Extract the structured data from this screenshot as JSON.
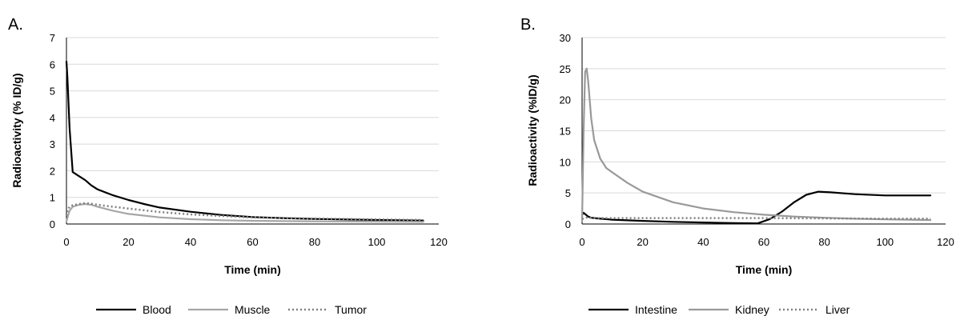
{
  "chart_data": [
    {
      "panel_label": "A.",
      "type": "line",
      "xlabel": "Time (min)",
      "ylabel": "Radioactivity (% ID/g)",
      "xlim": [
        0,
        120
      ],
      "ylim": [
        0,
        7
      ],
      "xticks": [
        0,
        20,
        40,
        60,
        80,
        100,
        120
      ],
      "yticks": [
        0,
        1,
        2,
        3,
        4,
        5,
        6,
        7
      ],
      "grid": "horizontal",
      "legend_position": "bottom",
      "series": [
        {
          "name": "Blood",
          "color": "#000000",
          "dash": "solid",
          "x": [
            0,
            0.3,
            1,
            2,
            4,
            6,
            8,
            10,
            15,
            20,
            25,
            30,
            40,
            50,
            60,
            70,
            80,
            90,
            100,
            115
          ],
          "y": [
            6.1,
            5.5,
            3.6,
            1.95,
            1.8,
            1.65,
            1.45,
            1.3,
            1.08,
            0.9,
            0.75,
            0.62,
            0.46,
            0.34,
            0.26,
            0.22,
            0.19,
            0.17,
            0.15,
            0.13
          ]
        },
        {
          "name": "Muscle",
          "color": "#a6a6a6",
          "dash": "solid",
          "x": [
            0,
            0.5,
            1,
            2,
            4,
            6,
            8,
            10,
            15,
            20,
            30,
            40,
            50,
            60,
            80,
            100,
            115
          ],
          "y": [
            0.1,
            0.3,
            0.5,
            0.65,
            0.72,
            0.75,
            0.72,
            0.65,
            0.5,
            0.38,
            0.25,
            0.18,
            0.14,
            0.12,
            0.1,
            0.09,
            0.08
          ]
        },
        {
          "name": "Tumor",
          "color": "#808080",
          "dash": "dotted",
          "x": [
            0,
            0.5,
            1,
            2,
            4,
            6,
            8,
            10,
            15,
            20,
            30,
            40,
            50,
            60,
            80,
            100,
            115
          ],
          "y": [
            0.3,
            0.55,
            0.65,
            0.7,
            0.75,
            0.78,
            0.76,
            0.72,
            0.65,
            0.58,
            0.45,
            0.36,
            0.3,
            0.25,
            0.2,
            0.17,
            0.15
          ]
        }
      ]
    },
    {
      "panel_label": "B.",
      "type": "line",
      "xlabel": "Time (min)",
      "ylabel": "Radioactivity (%ID/g)",
      "xlim": [
        0,
        120
      ],
      "ylim": [
        0,
        30
      ],
      "xticks": [
        0,
        20,
        40,
        60,
        80,
        100,
        120
      ],
      "yticks": [
        0,
        5,
        10,
        15,
        20,
        25,
        30
      ],
      "grid": "horizontal",
      "legend_position": "bottom",
      "series": [
        {
          "name": "Intestine",
          "color": "#000000",
          "dash": "solid",
          "x": [
            0,
            0.5,
            1,
            2,
            3,
            5,
            10,
            20,
            30,
            40,
            50,
            58,
            62,
            66,
            70,
            74,
            78,
            82,
            90,
            100,
            115
          ],
          "y": [
            1.5,
            1.8,
            1.6,
            1.2,
            1.0,
            0.9,
            0.7,
            0.5,
            0.35,
            0.25,
            0.15,
            0.1,
            0.8,
            2.0,
            3.5,
            4.7,
            5.2,
            5.1,
            4.8,
            4.6,
            4.6
          ]
        },
        {
          "name": "Kidney",
          "color": "#999999",
          "dash": "solid",
          "x": [
            0,
            0.5,
            1,
            1.5,
            2,
            3,
            4,
            6,
            8,
            10,
            15,
            20,
            30,
            40,
            50,
            60,
            70,
            80,
            90,
            100,
            115
          ],
          "y": [
            0.5,
            15,
            24.5,
            25,
            23,
            17,
            13.5,
            10.5,
            9,
            8.3,
            6.6,
            5.2,
            3.5,
            2.5,
            1.9,
            1.5,
            1.2,
            1.0,
            0.85,
            0.75,
            0.65
          ]
        },
        {
          "name": "Liver",
          "color": "#808080",
          "dash": "dotted",
          "x": [
            0,
            0.5,
            1,
            2,
            3,
            5,
            10,
            20,
            40,
            60,
            80,
            100,
            115
          ],
          "y": [
            0.8,
            0.9,
            1.0,
            1.05,
            1.0,
            0.95,
            0.95,
            0.95,
            0.95,
            0.95,
            0.9,
            0.85,
            0.85
          ]
        }
      ]
    }
  ]
}
